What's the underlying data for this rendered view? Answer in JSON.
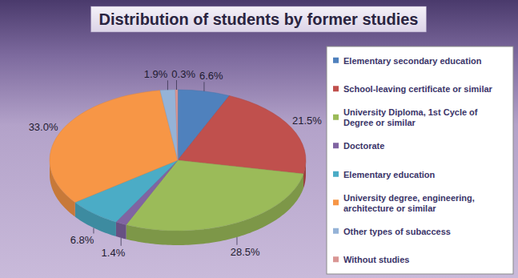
{
  "chart_data": {
    "type": "pie",
    "title": "Distribution of students by former studies",
    "categories": [
      "Elementary secondary education",
      "School-leaving certificate or similar",
      "University Diploma, 1st Cycle of Degree or similar",
      "Doctorate",
      "Elementary education",
      "University degree, engineering, architecture or similar",
      "Other types of subaccess",
      "Without studies"
    ],
    "values": [
      6.6,
      21.5,
      28.5,
      1.4,
      6.8,
      33.0,
      1.9,
      0.3
    ],
    "value_labels": [
      "6.6%",
      "21.5%",
      "28.5%",
      "1.4%",
      "6.8%",
      "33.0%",
      "1.9%",
      "0.3%"
    ],
    "colors": [
      "#4f81bd",
      "#c0504d",
      "#9bbb59",
      "#8064a2",
      "#4bacc6",
      "#f79646",
      "#95b3d7",
      "#d99694"
    ],
    "legend": "right",
    "data_labels": true
  }
}
